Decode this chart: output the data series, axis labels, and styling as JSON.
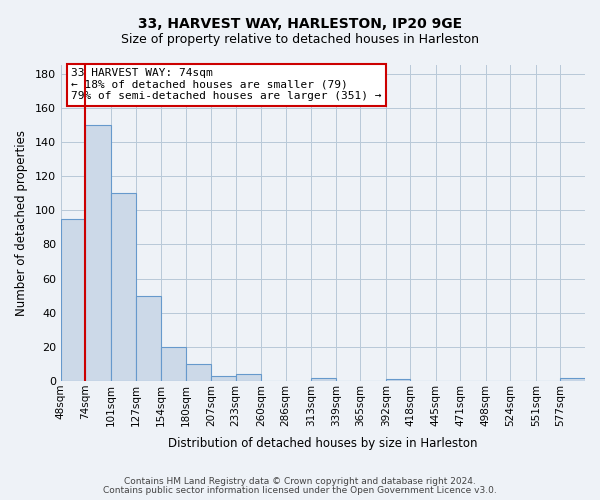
{
  "title": "33, HARVEST WAY, HARLESTON, IP20 9GE",
  "subtitle": "Size of property relative to detached houses in Harleston",
  "xlabel": "Distribution of detached houses by size in Harleston",
  "ylabel": "Number of detached properties",
  "bar_labels": [
    "48sqm",
    "74sqm",
    "101sqm",
    "127sqm",
    "154sqm",
    "180sqm",
    "207sqm",
    "233sqm",
    "260sqm",
    "286sqm",
    "313sqm",
    "339sqm",
    "365sqm",
    "392sqm",
    "418sqm",
    "445sqm",
    "471sqm",
    "498sqm",
    "524sqm",
    "551sqm",
    "577sqm"
  ],
  "bar_values": [
    95,
    150,
    110,
    50,
    20,
    10,
    3,
    4,
    0,
    0,
    2,
    0,
    0,
    1,
    0,
    0,
    0,
    0,
    0,
    0,
    2
  ],
  "bar_left_edges": [
    48,
    74,
    101,
    127,
    154,
    180,
    207,
    233,
    260,
    286,
    313,
    339,
    365,
    392,
    418,
    445,
    471,
    498,
    524,
    551,
    577
  ],
  "bar_widths": [
    26,
    27,
    26,
    27,
    26,
    27,
    26,
    27,
    26,
    27,
    26,
    26,
    27,
    26,
    27,
    26,
    27,
    26,
    27,
    26,
    26
  ],
  "bar_color": "#ccd9e8",
  "bar_edge_color": "#6699cc",
  "red_line_x": 74,
  "annotation_title": "33 HARVEST WAY: 74sqm",
  "annotation_line1": "← 18% of detached houses are smaller (79)",
  "annotation_line2": "79% of semi-detached houses are larger (351) →",
  "annotation_box_color": "#ffffff",
  "annotation_box_edge_color": "#cc0000",
  "ylim": [
    0,
    185
  ],
  "yticks": [
    0,
    20,
    40,
    60,
    80,
    100,
    120,
    140,
    160,
    180
  ],
  "footer_line1": "Contains HM Land Registry data © Crown copyright and database right 2024.",
  "footer_line2": "Contains public sector information licensed under the Open Government Licence v3.0.",
  "bg_color": "#eef2f7",
  "plot_bg_color": "#eef2f7",
  "grid_color": "#b8c8d8",
  "title_fontsize": 10,
  "subtitle_fontsize": 9
}
